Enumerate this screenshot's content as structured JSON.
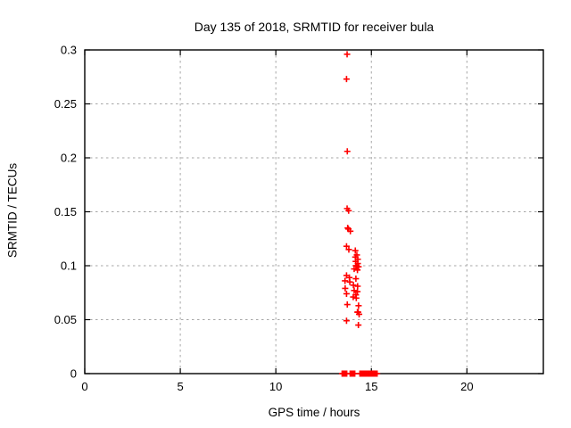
{
  "window": {
    "background": "#ffffff"
  },
  "chart_data": {
    "type": "scatter",
    "title": "Day 135 of 2018, SRMTID for receiver bula",
    "xlabel": "GPS time / hours",
    "ylabel": "SRMTID / TECUs",
    "xlim": [
      0,
      24
    ],
    "ylim": [
      0,
      0.3
    ],
    "xticks": [
      0,
      5,
      10,
      15,
      20
    ],
    "xtick_labels": [
      "0",
      "5",
      "10",
      "15",
      "20"
    ],
    "yticks": [
      0,
      0.05,
      0.1,
      0.15,
      0.2,
      0.25,
      0.3
    ],
    "ytick_labels": [
      "0",
      "0.05",
      "0.1",
      "0.15",
      "0.2",
      "0.25",
      "0.3"
    ],
    "grid": "dashed-gray-at-major-ticks",
    "grid_color": "#a6a6a6",
    "border_color": "#000000",
    "legend": "none",
    "marker": "plus",
    "marker_color": "#ff0000",
    "series": [
      {
        "name": "SRMTID",
        "points": [
          [
            13.73,
            0.296
          ],
          [
            13.7,
            0.273
          ],
          [
            13.74,
            0.206
          ],
          [
            13.73,
            0.153
          ],
          [
            13.81,
            0.151
          ],
          [
            13.76,
            0.135
          ],
          [
            13.8,
            0.134
          ],
          [
            13.9,
            0.132
          ],
          [
            13.7,
            0.118
          ],
          [
            13.82,
            0.115
          ],
          [
            14.16,
            0.114
          ],
          [
            14.24,
            0.11
          ],
          [
            14.16,
            0.108
          ],
          [
            14.29,
            0.106
          ],
          [
            14.18,
            0.104
          ],
          [
            14.29,
            0.102
          ],
          [
            14.19,
            0.1
          ],
          [
            14.22,
            0.1
          ],
          [
            14.33,
            0.099
          ],
          [
            14.1,
            0.097
          ],
          [
            14.27,
            0.096
          ],
          [
            13.7,
            0.091
          ],
          [
            13.85,
            0.089
          ],
          [
            14.19,
            0.088
          ],
          [
            13.62,
            0.086
          ],
          [
            13.87,
            0.085
          ],
          [
            14.06,
            0.082
          ],
          [
            14.28,
            0.081
          ],
          [
            13.63,
            0.079
          ],
          [
            14.1,
            0.077
          ],
          [
            14.27,
            0.076
          ],
          [
            13.7,
            0.074
          ],
          [
            14.19,
            0.073
          ],
          [
            14.05,
            0.071
          ],
          [
            14.21,
            0.07
          ],
          [
            13.74,
            0.064
          ],
          [
            14.33,
            0.063
          ],
          [
            14.27,
            0.057
          ],
          [
            14.31,
            0.057
          ],
          [
            14.36,
            0.055
          ],
          [
            13.7,
            0.049
          ],
          [
            14.32,
            0.045
          ],
          [
            13.47,
            0
          ],
          [
            13.53,
            0
          ],
          [
            13.59,
            0
          ],
          [
            13.65,
            0
          ],
          [
            13.71,
            0
          ],
          [
            13.89,
            0
          ],
          [
            13.95,
            0
          ],
          [
            14.01,
            0
          ],
          [
            14.07,
            0
          ],
          [
            14.13,
            0
          ],
          [
            14.4,
            0
          ],
          [
            14.46,
            0
          ],
          [
            14.52,
            0
          ],
          [
            14.58,
            0
          ],
          [
            14.64,
            0
          ],
          [
            14.7,
            0
          ],
          [
            14.76,
            0
          ],
          [
            14.82,
            0
          ],
          [
            14.88,
            0
          ],
          [
            14.94,
            0
          ],
          [
            15.0,
            0
          ],
          [
            15.06,
            0
          ],
          [
            15.12,
            0
          ],
          [
            15.18,
            0
          ],
          [
            15.24,
            0
          ],
          [
            15.3,
            0
          ]
        ]
      }
    ]
  }
}
